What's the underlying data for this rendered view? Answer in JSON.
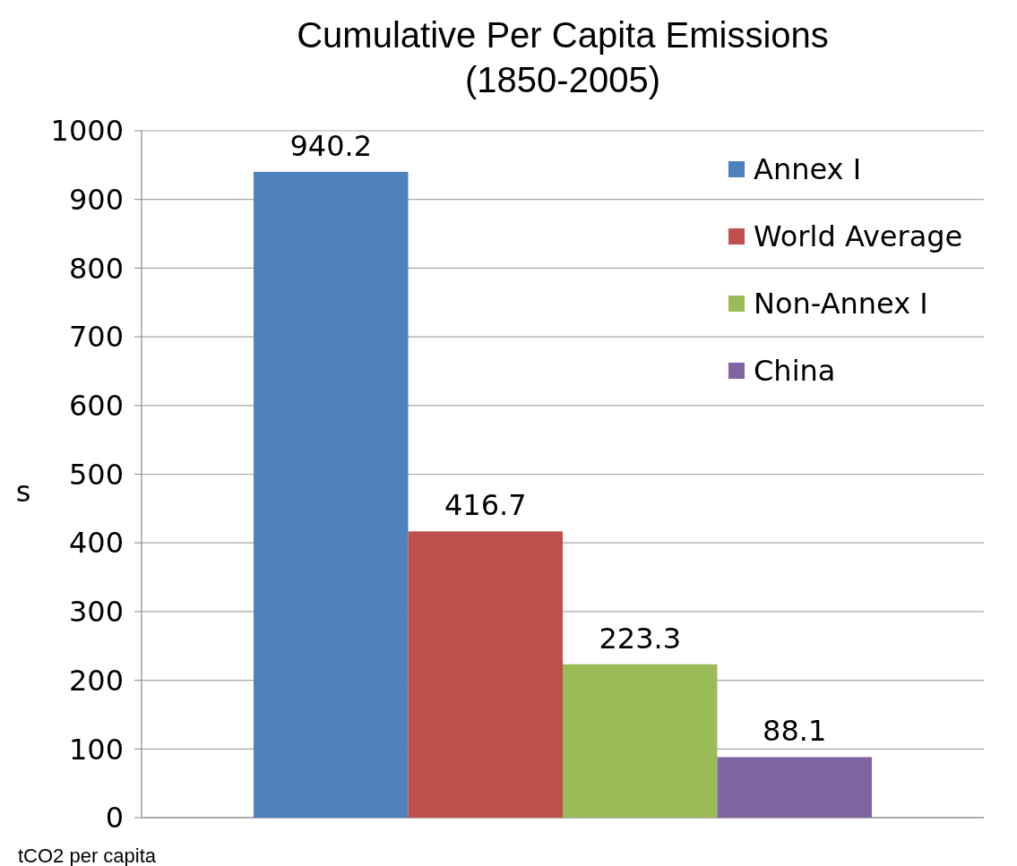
{
  "chart_data": {
    "type": "bar",
    "title": "Cumulative Per Capita Emissions\n(1850-2005)",
    "ylabel": "s",
    "annotations": [
      "tCO2 per capita"
    ],
    "categories": [
      null
    ],
    "series": [
      {
        "name": "Annex I",
        "color": "#4f81bd",
        "values": [
          940.2
        ]
      },
      {
        "name": "World Average",
        "color": "#c0504d",
        "values": [
          416.7
        ]
      },
      {
        "name": "Non-Annex I",
        "color": "#9bbb59",
        "values": [
          223.3
        ]
      },
      {
        "name": "China",
        "color": "#8064a2",
        "values": [
          88.1
        ]
      }
    ],
    "ylim": [
      0,
      1000
    ],
    "yticks": [
      0,
      100,
      200,
      300,
      400,
      500,
      600,
      700,
      800,
      900,
      1000
    ],
    "grid": "y",
    "legend": "top right",
    "data_labels": true
  }
}
